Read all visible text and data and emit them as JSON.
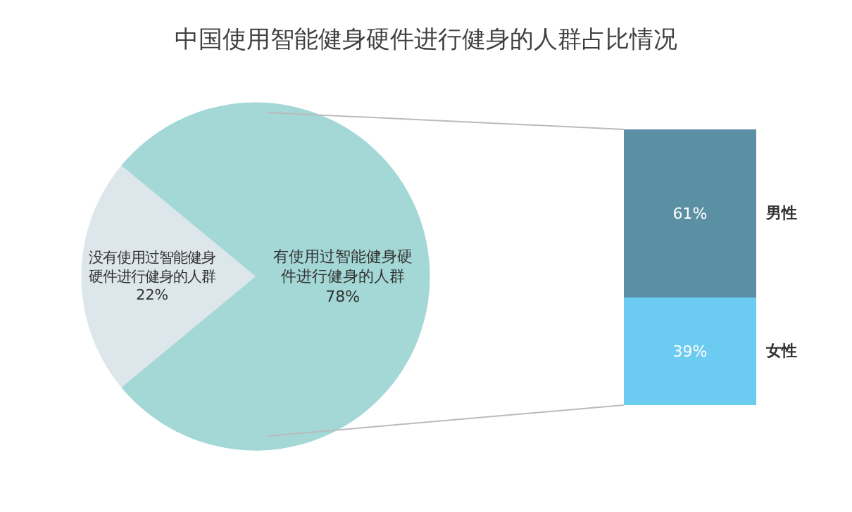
{
  "chart_data": [
    {
      "type": "pie",
      "title": "中国使用智能健身硬件进行健身的人群占比情况",
      "categories": [
        "没有使用过智能健身硬件进行健身的人群",
        "有使用过智能健身硬件进行健身的人群"
      ],
      "values": [
        22,
        78
      ],
      "value_labels": [
        "22%",
        "78%"
      ],
      "colors": [
        "#dde6ea",
        "#a3d8d6"
      ],
      "legend": false
    },
    {
      "type": "bar",
      "stacked": true,
      "categories": [
        null
      ],
      "series": [
        {
          "name": "女性",
          "color": "#6bcbf0",
          "values": [
            39
          ],
          "value_labels": [
            "39%"
          ]
        },
        {
          "name": "男性",
          "color": "#5b8fa3",
          "values": [
            61
          ],
          "value_labels": [
            "61%"
          ]
        }
      ],
      "legend": false
    }
  ]
}
